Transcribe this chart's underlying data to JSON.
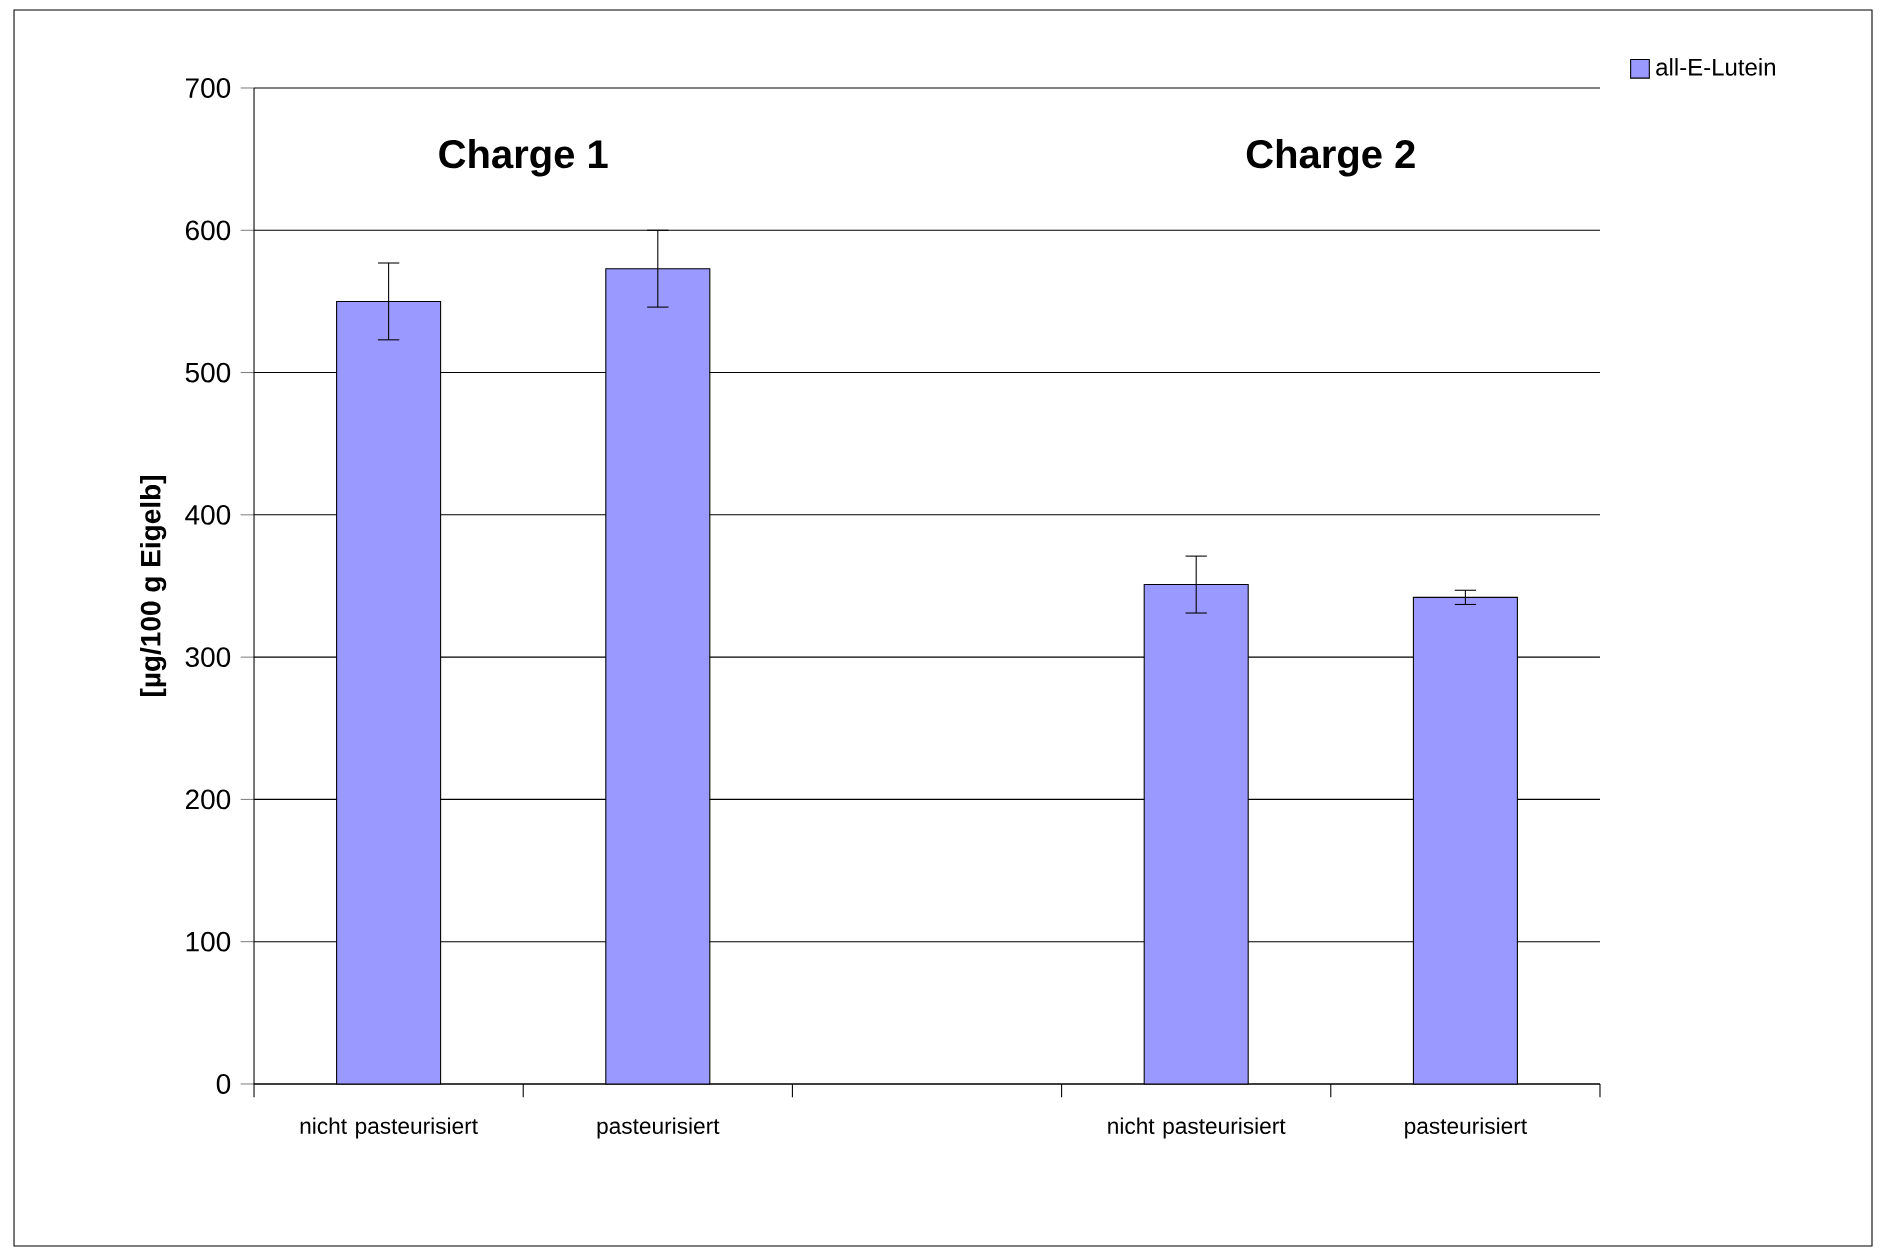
{
  "chart_data": {
    "type": "bar",
    "categories": [
      "nicht pasteurisiert",
      "pasteurisiert",
      null,
      "nicht pasteurisiert",
      "pasteurisiert"
    ],
    "series": [
      {
        "name": "all-E-Lutein",
        "color": "#9999ff",
        "values": [
          550,
          573,
          null,
          351,
          342
        ],
        "errors": [
          27,
          27,
          null,
          20,
          5
        ]
      }
    ],
    "ylabel": "[µg/100 g Eigelb]",
    "ylim": [
      0,
      700
    ],
    "yticks": [
      0,
      100,
      200,
      300,
      400,
      500,
      600,
      700
    ],
    "grid": "y",
    "legend": "top right",
    "annotations": [
      "Charge 1",
      "Charge 2"
    ]
  }
}
